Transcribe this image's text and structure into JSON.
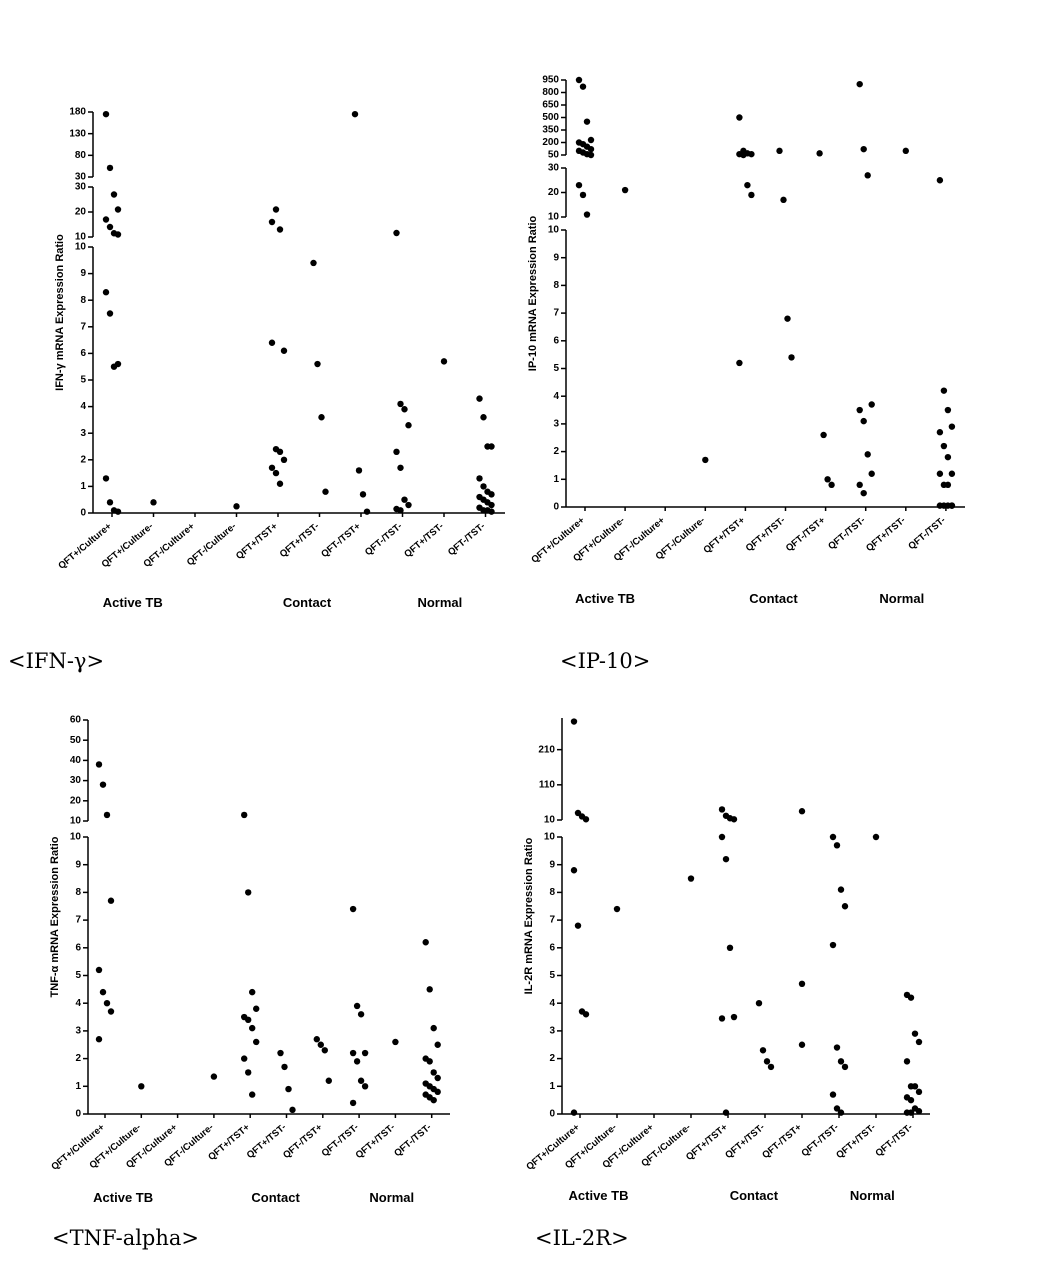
{
  "chart_data": [
    {
      "type": "scatter",
      "caption": "<IFN-γ>",
      "y_label": "IFN-γ mRNA Expression Ratio",
      "categories": [
        "QFT+/Culture+",
        "QFT+/Culture-",
        "QFT-/Culture+",
        "QFT-/Culture-",
        "QFT+/TST+",
        "QFT+/TST-",
        "QFT-/TST+",
        "QFT-/TST-",
        "QFT+/TST-",
        "QFT-/TST-"
      ],
      "groups": [
        "Active TB",
        "Contact",
        "Normal"
      ],
      "y_segments": [
        {
          "ylim": [
            0,
            10
          ],
          "yticks": [
            0,
            1,
            2,
            3,
            4,
            5,
            6,
            7,
            8,
            9,
            10
          ]
        },
        {
          "ylim": [
            10,
            30
          ],
          "yticks": [
            10,
            20,
            30
          ]
        },
        {
          "ylim": [
            30,
            180
          ],
          "yticks": [
            30,
            80,
            130,
            180
          ]
        }
      ],
      "values": [
        [
          175,
          51,
          27,
          21,
          17,
          14,
          11.5,
          11,
          8.3,
          7.5,
          5.5,
          5.6,
          1.3,
          0.4,
          0.1,
          0.05
        ],
        [
          0.4
        ],
        [],
        [
          0.25
        ],
        [
          16,
          21,
          13,
          6.1,
          6.4,
          2.4,
          2.3,
          2.0,
          1.7,
          1.5,
          1.1
        ],
        [
          9.4,
          5.6,
          3.6,
          0.8
        ],
        [
          175,
          1.6,
          0.7,
          0.05
        ],
        [
          11.6,
          4.1,
          3.9,
          3.3,
          2.3,
          1.7,
          0.5,
          0.3,
          0.15,
          0.1
        ],
        [
          5.7
        ],
        [
          4.3,
          3.6,
          2.5,
          2.5,
          1.3,
          1.0,
          0.8,
          0.7,
          0.6,
          0.5,
          0.4,
          0.3,
          0.2,
          0.1,
          0.1,
          0.05
        ]
      ]
    },
    {
      "type": "scatter",
      "caption": "<IP-10>",
      "y_label": "IP-10 mRNA Expression Ratio",
      "categories": [
        "QFT+/Culture+",
        "QFT+/Culture-",
        "QFT-/Culture+",
        "QFT-/Culture-",
        "QFT+/TST+",
        "QFT+/TST-",
        "QFT-/TST+",
        "QFT-/TST-",
        "QFT+/TST-",
        "QFT-/TST-"
      ],
      "groups": [
        "Active TB",
        "Contact",
        "Normal"
      ],
      "y_segments": [
        {
          "ylim": [
            0,
            10
          ],
          "yticks": [
            0,
            1,
            2,
            3,
            4,
            5,
            6,
            7,
            8,
            9,
            10
          ]
        },
        {
          "ylim": [
            10,
            30
          ],
          "yticks": [
            10,
            20,
            30
          ]
        },
        {
          "ylim": [
            50,
            950
          ],
          "yticks": [
            50,
            200,
            350,
            500,
            650,
            800,
            950
          ]
        }
      ],
      "values": [
        [
          950,
          870,
          450,
          230,
          200,
          180,
          150,
          120,
          100,
          80,
          60,
          50,
          23,
          19,
          11
        ],
        [
          21
        ],
        [],
        [
          1.7
        ],
        [
          500,
          100,
          70,
          60,
          60,
          50,
          23,
          19,
          5.2
        ],
        [
          100,
          17,
          6.8,
          5.4
        ],
        [
          70,
          2.6,
          1.0,
          0.8
        ],
        [
          900,
          120,
          27,
          3.7,
          3.5,
          3.1,
          1.9,
          1.2,
          0.8,
          0.5
        ],
        [
          100
        ],
        [
          25,
          4.2,
          3.5,
          2.9,
          2.7,
          2.2,
          1.8,
          1.2,
          1.2,
          0.8,
          0.8,
          0.05,
          0.05,
          0.05,
          0.05,
          0.05
        ]
      ]
    },
    {
      "type": "scatter",
      "caption": "<TNF-alpha>",
      "y_label": "TNF-α mRNA Expression Ratio",
      "categories": [
        "QFT+/Culture+",
        "QFT+/Culture-",
        "QFT-/Culture+",
        "QFT-/Culture-",
        "QFT+/TST+",
        "QFT+/TST-",
        "QFT-/TST+",
        "QFT-/TST-",
        "QFT+/TST-",
        "QFT-/TST-"
      ],
      "groups": [
        "Active TB",
        "Contact",
        "Normal"
      ],
      "y_segments": [
        {
          "ylim": [
            0,
            10
          ],
          "yticks": [
            0,
            1,
            2,
            3,
            4,
            5,
            6,
            7,
            8,
            9,
            10
          ]
        },
        {
          "ylim": [
            10,
            60
          ],
          "yticks": [
            10,
            20,
            30,
            40,
            50,
            60
          ]
        }
      ],
      "values": [
        [
          38,
          28,
          13,
          7.7,
          5.2,
          4.4,
          4.0,
          3.7,
          2.7
        ],
        [
          1.0
        ],
        [],
        [
          1.35
        ],
        [
          13,
          8.0,
          4.4,
          3.8,
          3.5,
          3.4,
          3.1,
          2.6,
          2.0,
          1.5,
          0.7
        ],
        [
          2.2,
          1.7,
          0.9,
          0.15
        ],
        [
          2.7,
          2.5,
          2.3,
          1.2
        ],
        [
          7.4,
          3.9,
          3.6,
          2.2,
          2.2,
          1.9,
          1.2,
          1.0,
          0.4
        ],
        [
          2.6
        ],
        [
          6.2,
          4.5,
          3.1,
          2.5,
          2.0,
          1.9,
          1.5,
          1.3,
          1.1,
          1.0,
          0.9,
          0.8,
          0.7,
          0.6,
          0.5
        ]
      ]
    },
    {
      "type": "scatter",
      "caption": "<IL-2R>",
      "y_label": "IL-2R mRNA Expression Ratio",
      "categories": [
        "QFT+/Culture+",
        "QFT+/Culture-",
        "QFT-/Culture+",
        "QFT-/Culture-",
        "QFT+/TST+",
        "QFT+/TST-",
        "QFT-/TST+",
        "QFT-/TST-",
        "QFT+/TST-",
        "QFT-/TST-"
      ],
      "groups": [
        "Active TB",
        "Contact",
        "Normal"
      ],
      "y_segments": [
        {
          "ylim": [
            0,
            10
          ],
          "yticks": [
            0,
            1,
            2,
            3,
            4,
            5,
            6,
            7,
            8,
            9,
            10
          ]
        },
        {
          "ylim": [
            10,
            300
          ],
          "yticks": [
            10,
            110,
            210
          ]
        }
      ],
      "values": [
        [
          290,
          30,
          20,
          12,
          8.8,
          6.8,
          3.7,
          3.6,
          0.05
        ],
        [
          7.4
        ],
        [],
        [
          8.5
        ],
        [
          40,
          22,
          15,
          12,
          10,
          9.2,
          6.0,
          3.5,
          3.45,
          0.05
        ],
        [
          4.0,
          2.3,
          1.9,
          1.7
        ],
        [
          35,
          4.7,
          2.5
        ],
        [
          10,
          9.7,
          8.1,
          7.5,
          6.1,
          2.4,
          1.9,
          1.7,
          0.7,
          0.2,
          0.05
        ],
        [
          10
        ],
        [
          4.3,
          4.2,
          2.9,
          2.6,
          1.9,
          1.0,
          1.0,
          0.8,
          0.6,
          0.5,
          0.2,
          0.1,
          0.05,
          0.05
        ]
      ]
    }
  ]
}
